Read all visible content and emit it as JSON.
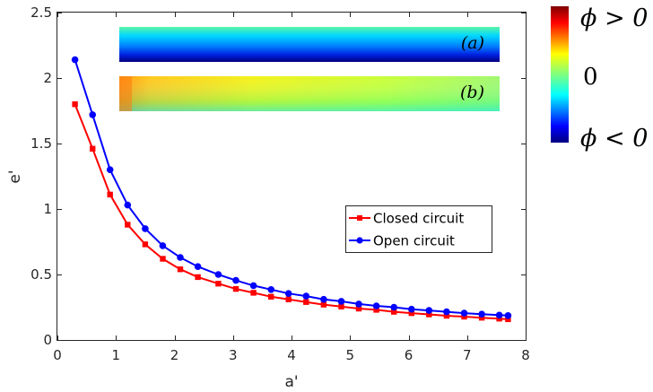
{
  "chart_data": {
    "type": "line",
    "xlabel": "a'",
    "ylabel": "e'",
    "xlim": [
      0,
      8
    ],
    "ylim": [
      0,
      2.5
    ],
    "xticks": [
      0,
      1,
      2,
      3,
      4,
      5,
      6,
      7,
      8
    ],
    "yticks": [
      0,
      0.5,
      1,
      1.5,
      2,
      2.5
    ],
    "x": [
      0.3,
      0.6,
      0.9,
      1.2,
      1.5,
      1.8,
      2.1,
      2.4,
      2.75,
      3.05,
      3.35,
      3.65,
      3.95,
      4.25,
      4.55,
      4.85,
      5.15,
      5.45,
      5.75,
      6.05,
      6.35,
      6.65,
      6.95,
      7.25,
      7.55,
      7.7
    ],
    "series": [
      {
        "name": "Closed circuit",
        "color": "#ff0000",
        "marker": "square",
        "values": [
          1.8,
          1.46,
          1.11,
          0.88,
          0.73,
          0.62,
          0.54,
          0.48,
          0.43,
          0.39,
          0.36,
          0.33,
          0.31,
          0.29,
          0.27,
          0.255,
          0.24,
          0.23,
          0.215,
          0.205,
          0.195,
          0.185,
          0.178,
          0.17,
          0.163,
          0.158
        ]
      },
      {
        "name": "Open circuit",
        "color": "#0000ff",
        "marker": "circle",
        "values": [
          2.14,
          1.72,
          1.3,
          1.03,
          0.85,
          0.72,
          0.63,
          0.56,
          0.5,
          0.455,
          0.415,
          0.385,
          0.355,
          0.335,
          0.31,
          0.295,
          0.275,
          0.26,
          0.25,
          0.235,
          0.225,
          0.215,
          0.205,
          0.197,
          0.19,
          0.186
        ]
      }
    ],
    "grid": false,
    "legend_position": "center-right"
  },
  "insets": [
    {
      "label_math": "(a)"
    },
    {
      "label_math": "(b)"
    }
  ],
  "colorbar": {
    "colormap": "jet",
    "labels": [
      "ϕ > 0",
      "0",
      "ϕ < 0"
    ]
  }
}
